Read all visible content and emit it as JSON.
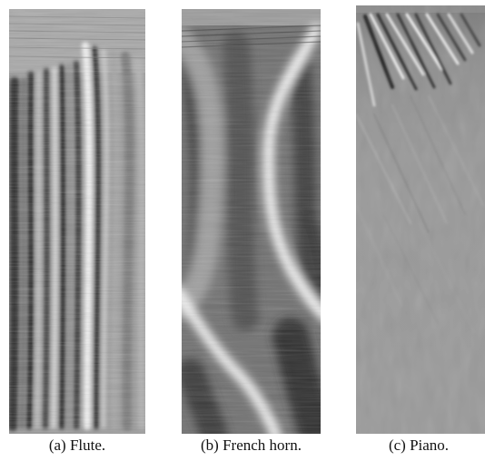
{
  "figure": {
    "panels": [
      {
        "label": "(a)",
        "caption": "Flute."
      },
      {
        "label": "(b)",
        "caption": "French horn."
      },
      {
        "label": "(c)",
        "caption": "Piano."
      }
    ]
  }
}
